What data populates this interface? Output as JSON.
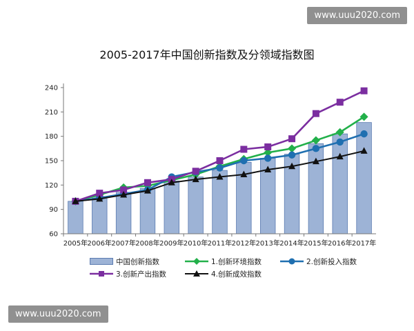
{
  "watermark_top": "www.uuu2020.com",
  "watermark_bottom": "www.uuu2020.com",
  "chart_data": {
    "type": "bar+line",
    "title": "2005-2017年中国创新指数及分领域指数图",
    "categories": [
      "2005年",
      "2006年",
      "2007年",
      "2008年",
      "2009年",
      "2010年",
      "2011年",
      "2012年",
      "2013年",
      "2014年",
      "2015年",
      "2016年",
      "2017年"
    ],
    "ylim": [
      60,
      240
    ],
    "yticks": [
      60,
      90,
      120,
      150,
      180,
      210,
      240
    ],
    "grid": false,
    "legend_placement": "bottom",
    "bars": {
      "name": "中国创新指数",
      "color": "#9db3d6",
      "values": [
        100,
        106,
        111,
        116,
        125,
        130,
        138,
        148,
        153,
        158,
        171,
        183,
        197
      ]
    },
    "series": [
      {
        "name": "1.创新环境指数",
        "color": "#22b04a",
        "marker": "diamond",
        "values": [
          100,
          108,
          117,
          119,
          126,
          133,
          143,
          152,
          160,
          165,
          175,
          185,
          204
        ]
      },
      {
        "name": "2.创新投入指数",
        "color": "#1f6fb0",
        "marker": "circle",
        "values": [
          100,
          104,
          109,
          114,
          130,
          136,
          141,
          150,
          153,
          157,
          165,
          173,
          183
        ]
      },
      {
        "name": "3.创新产出指数",
        "color": "#7b2ea0",
        "marker": "square",
        "values": [
          100,
          110,
          114,
          123,
          127,
          137,
          150,
          164,
          167,
          177,
          208,
          222,
          236
        ]
      },
      {
        "name": "4.创新成效指数",
        "color": "#111111",
        "marker": "triangle",
        "values": [
          100,
          103,
          108,
          113,
          123,
          127,
          130,
          133,
          139,
          143,
          149,
          155,
          162
        ]
      }
    ]
  }
}
